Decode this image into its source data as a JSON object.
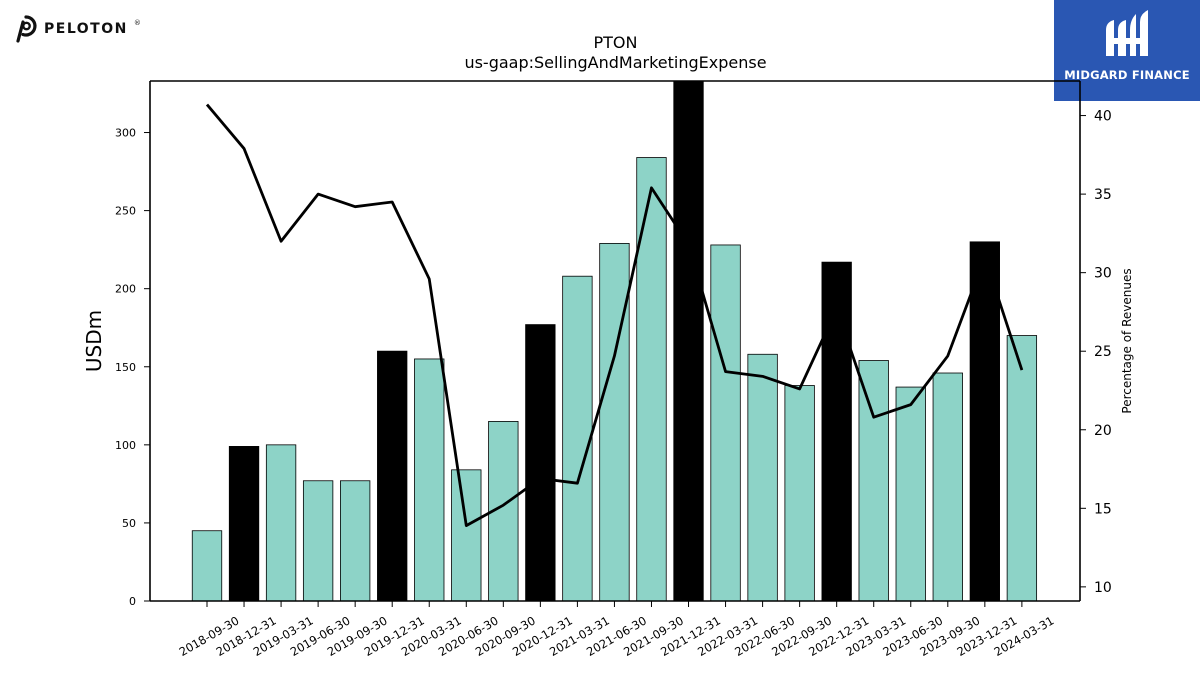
{
  "brand": {
    "name": "PELOTON",
    "mark": "®"
  },
  "sponsor": {
    "name": "MIDGARD FINANCE"
  },
  "colors": {
    "primary_bar": "#8dd3c7",
    "highlight_bar": "#000000",
    "line": "#000000"
  },
  "chart_data": {
    "type": "bar",
    "title": "PTON",
    "subtitle": "us-gaap:SellingAndMarketingExpense",
    "ylabel": "USDm",
    "y2label": "Percentage of Revenues",
    "ylim": [
      0,
      333
    ],
    "y2lim": [
      9.1,
      42.2
    ],
    "yticks": [
      0,
      50,
      100,
      150,
      200,
      250,
      300
    ],
    "y2ticks": [
      10,
      15,
      20,
      25,
      30,
      35,
      40
    ],
    "categories": [
      "2018-09-30",
      "2018-12-31",
      "2019-03-31",
      "2019-06-30",
      "2019-09-30",
      "2019-12-31",
      "2020-03-31",
      "2020-06-30",
      "2020-09-30",
      "2020-12-31",
      "2021-03-31",
      "2021-06-30",
      "2021-09-30",
      "2021-12-31",
      "2022-03-31",
      "2022-06-30",
      "2022-09-30",
      "2022-12-31",
      "2023-03-31",
      "2023-06-30",
      "2023-09-30",
      "2023-12-31",
      "2024-03-31"
    ],
    "series": [
      {
        "type": "bar",
        "values": [
          45,
          99,
          100,
          77,
          77,
          160,
          155,
          84,
          115,
          177,
          208,
          229,
          284,
          333,
          228,
          158,
          138,
          217,
          154,
          137,
          146,
          230,
          170
        ]
      },
      {
        "type": "line",
        "axis": "right",
        "values": [
          40.7,
          37.9,
          32.0,
          35.0,
          34.2,
          34.5,
          29.6,
          13.9,
          15.2,
          16.9,
          16.6,
          24.7,
          35.4,
          31.8,
          23.7,
          23.4,
          22.6,
          27.7,
          20.8,
          21.6,
          24.7,
          31.0,
          23.8
        ]
      }
    ],
    "highlight_categories": [
      "2018-12-31",
      "2019-12-31",
      "2020-12-31",
      "2021-12-31",
      "2022-12-31",
      "2023-12-31"
    ],
    "grid": false,
    "legend": "none"
  }
}
